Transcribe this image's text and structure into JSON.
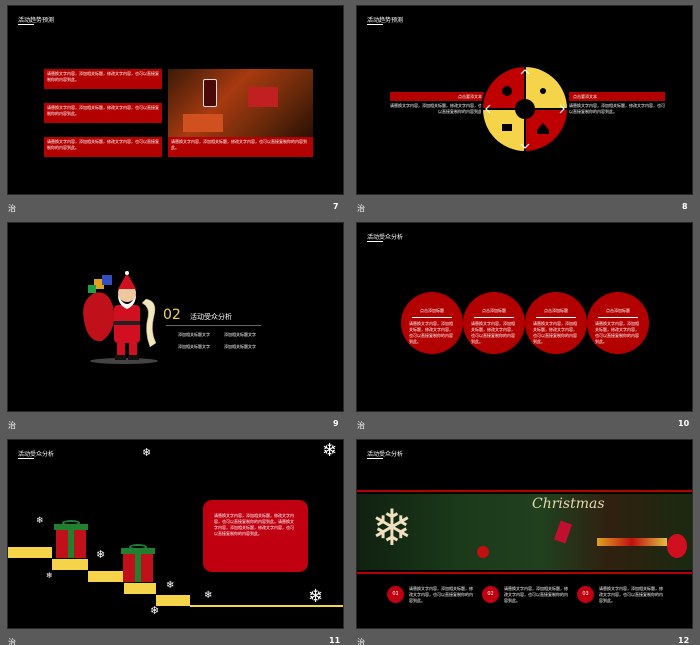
{
  "slides": [
    {
      "number": "7",
      "title": "活动趋势预测",
      "texts": [
        "请替换文字内容，添加相关标题，修改文字内容，也可以直接复制你的内容到此。",
        "请替换文字内容，添加相关标题，修改文字内容，也可以直接复制你的内容到此。",
        "请替换文字内容，添加相关标题，修改文字内容，也可以直接复制你的内容到此。"
      ]
    },
    {
      "number": "8",
      "title": "活动趋势预测",
      "left_heading": "点击要添文本",
      "right_heading": "点击要添文本",
      "left_text": "请替换文字内容，添加相关标题，修改文字内容，也可以直接复制你的内容到此。",
      "right_text": "请替换文字内容，添加相关标题，修改文字内容，也可以直接复制你的内容到此。"
    },
    {
      "number": "9",
      "section_num": "02",
      "section_title": "活动受众分析",
      "items": [
        "添加相关标题文字",
        "添加相关标题文字",
        "添加相关标题文字",
        "添加相关标题文字"
      ]
    },
    {
      "number": "10",
      "title": "活动受众分析",
      "circles": [
        {
          "heading": "点击添加标题",
          "text": "请替换文字内容，添加相关标题，修改文字内容，也可以直接复制你的内容到此。"
        },
        {
          "heading": "点击添加标题",
          "text": "请替换文字内容，添加相关标题，修改文字内容，也可以直接复制你的内容到此。"
        },
        {
          "heading": "点击添加标题",
          "text": "请替换文字内容，添加相关标题，修改文字内容，也可以直接复制你的内容到此。"
        },
        {
          "heading": "点击添加标题",
          "text": "请替换文字内容，添加相关标题，修改文字内容，也可以直接复制你的内容到此。"
        }
      ]
    },
    {
      "number": "11",
      "title": "活动受众分析",
      "box_text": "请替换文字内容，添加相关标题，修改文字内容，也可以直接复制你的内容到此。请替换文字内容，添加相关标题，修改文字内容，也可以直接复制你的内容到此。"
    },
    {
      "number": "12",
      "title": "活动受众分析",
      "picture_word": "Christmas",
      "items": [
        {
          "n": "01",
          "text": "请替换文字内容，添加相关标题，修改文字内容，也可以直接复制你的内容到此。"
        },
        {
          "n": "02",
          "text": "请替换文字内容，添加相关标题，修改文字内容，也可以直接复制你的内容到此。"
        },
        {
          "n": "03",
          "text": "请替换文字内容，添加相关标题，修改文字内容，也可以直接复制你的内容到此。"
        }
      ]
    }
  ],
  "slide_label": "治",
  "colors": {
    "red": "#b30000",
    "yellow": "#f5d44a",
    "bg": "#000000"
  }
}
